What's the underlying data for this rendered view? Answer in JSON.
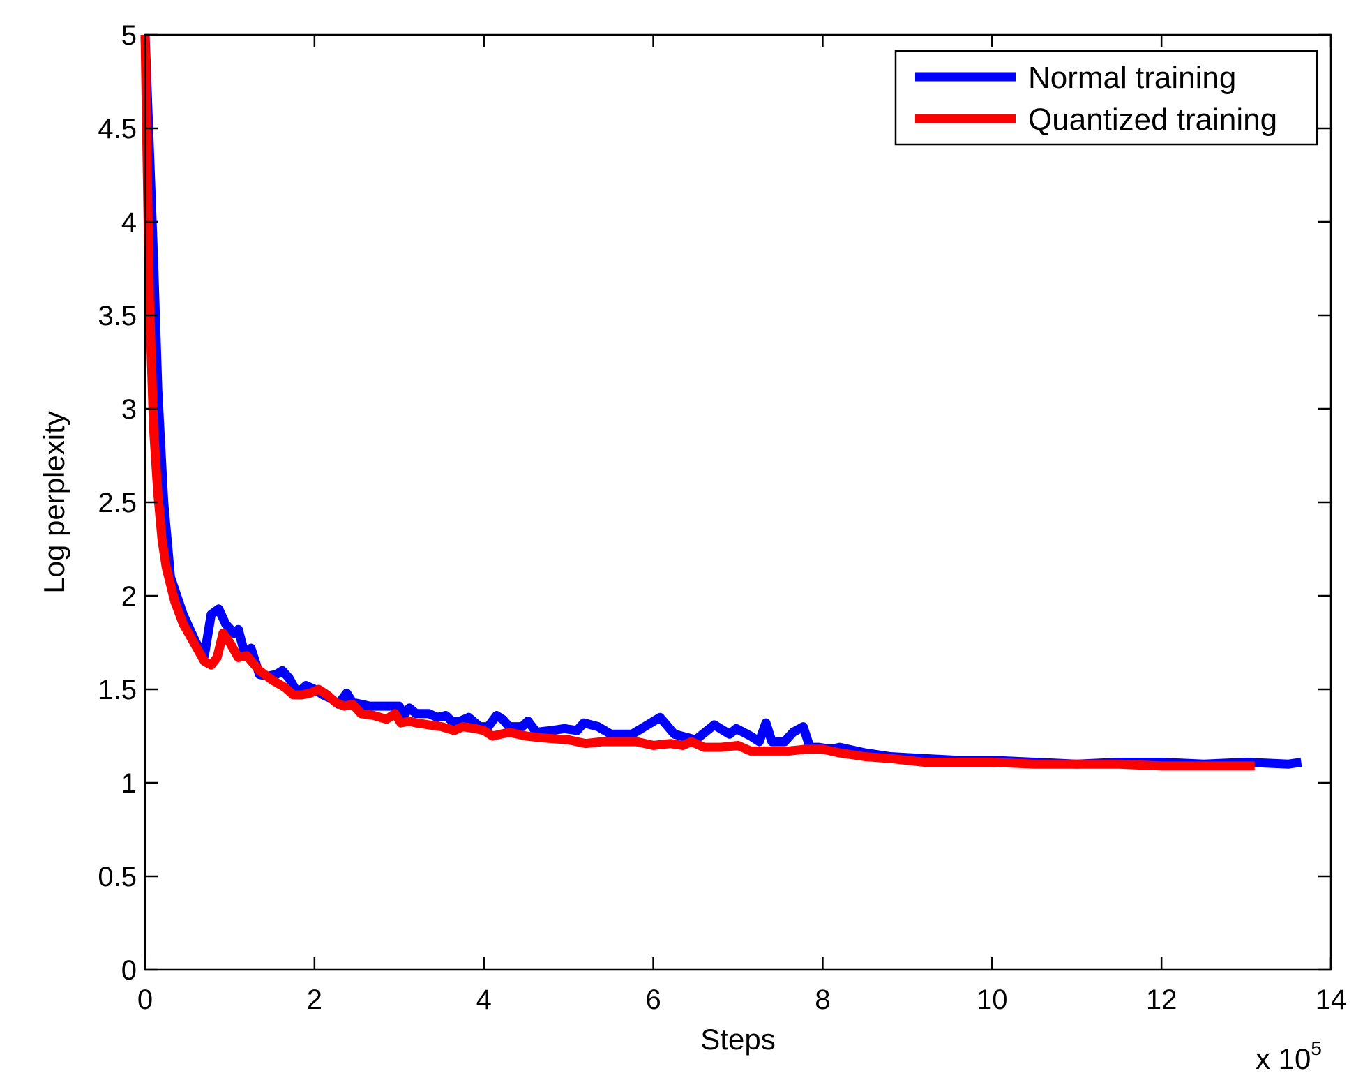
{
  "chart_data": {
    "type": "line",
    "xlabel": "Steps",
    "ylabel": "Log perplexity",
    "x_multiplier_label": "x 10",
    "x_multiplier_exponent": "5",
    "xlim": [
      0,
      14
    ],
    "ylim": [
      0,
      5
    ],
    "xticks": [
      0,
      2,
      4,
      6,
      8,
      10,
      12,
      14
    ],
    "yticks": [
      0,
      0.5,
      1,
      1.5,
      2,
      2.5,
      3,
      3.5,
      4,
      4.5,
      5
    ],
    "ytick_labels": [
      "0",
      "0.5",
      "1",
      "1.5",
      "2",
      "2.5",
      "3",
      "3.5",
      "4",
      "4.5",
      "5"
    ],
    "grid": false,
    "legend_position": "top-right",
    "series": [
      {
        "name": "Normal training",
        "color": "#0000ff",
        "points": [
          [
            0.0,
            5.0
          ],
          [
            0.1,
            3.8
          ],
          [
            0.15,
            3.1
          ],
          [
            0.22,
            2.5
          ],
          [
            0.3,
            2.1
          ],
          [
            0.45,
            1.9
          ],
          [
            0.6,
            1.75
          ],
          [
            0.7,
            1.68
          ],
          [
            0.78,
            1.9
          ],
          [
            0.87,
            1.93
          ],
          [
            0.95,
            1.85
          ],
          [
            1.05,
            1.8
          ],
          [
            1.1,
            1.82
          ],
          [
            1.17,
            1.7
          ],
          [
            1.25,
            1.72
          ],
          [
            1.35,
            1.58
          ],
          [
            1.45,
            1.57
          ],
          [
            1.55,
            1.58
          ],
          [
            1.62,
            1.6
          ],
          [
            1.7,
            1.56
          ],
          [
            1.8,
            1.48
          ],
          [
            1.9,
            1.52
          ],
          [
            2.0,
            1.5
          ],
          [
            2.1,
            1.47
          ],
          [
            2.2,
            1.45
          ],
          [
            2.28,
            1.42
          ],
          [
            2.38,
            1.48
          ],
          [
            2.45,
            1.43
          ],
          [
            2.55,
            1.42
          ],
          [
            2.65,
            1.41
          ],
          [
            2.8,
            1.41
          ],
          [
            3.0,
            1.41
          ],
          [
            3.05,
            1.36
          ],
          [
            3.12,
            1.4
          ],
          [
            3.2,
            1.37
          ],
          [
            3.35,
            1.37
          ],
          [
            3.45,
            1.35
          ],
          [
            3.55,
            1.36
          ],
          [
            3.62,
            1.33
          ],
          [
            3.72,
            1.33
          ],
          [
            3.82,
            1.35
          ],
          [
            3.95,
            1.3
          ],
          [
            4.05,
            1.3
          ],
          [
            4.15,
            1.36
          ],
          [
            4.22,
            1.34
          ],
          [
            4.3,
            1.3
          ],
          [
            4.45,
            1.3
          ],
          [
            4.52,
            1.33
          ],
          [
            4.62,
            1.27
          ],
          [
            4.8,
            1.28
          ],
          [
            4.95,
            1.29
          ],
          [
            5.1,
            1.28
          ],
          [
            5.18,
            1.32
          ],
          [
            5.35,
            1.3
          ],
          [
            5.5,
            1.26
          ],
          [
            5.75,
            1.26
          ],
          [
            6.08,
            1.35
          ],
          [
            6.25,
            1.26
          ],
          [
            6.5,
            1.23
          ],
          [
            6.72,
            1.31
          ],
          [
            6.9,
            1.26
          ],
          [
            6.98,
            1.29
          ],
          [
            7.15,
            1.25
          ],
          [
            7.25,
            1.22
          ],
          [
            7.33,
            1.32
          ],
          [
            7.4,
            1.22
          ],
          [
            7.55,
            1.22
          ],
          [
            7.65,
            1.27
          ],
          [
            7.77,
            1.3
          ],
          [
            7.85,
            1.19
          ],
          [
            7.95,
            1.19
          ],
          [
            8.1,
            1.18
          ],
          [
            8.2,
            1.19
          ],
          [
            8.5,
            1.16
          ],
          [
            8.8,
            1.14
          ],
          [
            9.2,
            1.13
          ],
          [
            9.6,
            1.12
          ],
          [
            10.0,
            1.12
          ],
          [
            10.5,
            1.11
          ],
          [
            11.0,
            1.1
          ],
          [
            11.5,
            1.11
          ],
          [
            12.0,
            1.11
          ],
          [
            12.5,
            1.1
          ],
          [
            13.0,
            1.11
          ],
          [
            13.5,
            1.1
          ],
          [
            13.65,
            1.11
          ]
        ]
      },
      {
        "name": "Quantized training",
        "color": "#ff0000",
        "points": [
          [
            0.0,
            5.0
          ],
          [
            0.05,
            3.6
          ],
          [
            0.1,
            2.9
          ],
          [
            0.15,
            2.55
          ],
          [
            0.2,
            2.3
          ],
          [
            0.25,
            2.15
          ],
          [
            0.35,
            1.97
          ],
          [
            0.45,
            1.85
          ],
          [
            0.6,
            1.73
          ],
          [
            0.7,
            1.65
          ],
          [
            0.78,
            1.63
          ],
          [
            0.85,
            1.67
          ],
          [
            0.92,
            1.8
          ],
          [
            1.0,
            1.75
          ],
          [
            1.1,
            1.67
          ],
          [
            1.2,
            1.68
          ],
          [
            1.35,
            1.6
          ],
          [
            1.5,
            1.55
          ],
          [
            1.65,
            1.51
          ],
          [
            1.75,
            1.47
          ],
          [
            1.85,
            1.47
          ],
          [
            1.95,
            1.48
          ],
          [
            2.05,
            1.5
          ],
          [
            2.15,
            1.47
          ],
          [
            2.25,
            1.43
          ],
          [
            2.35,
            1.41
          ],
          [
            2.45,
            1.42
          ],
          [
            2.55,
            1.37
          ],
          [
            2.7,
            1.36
          ],
          [
            2.85,
            1.34
          ],
          [
            2.95,
            1.37
          ],
          [
            3.02,
            1.32
          ],
          [
            3.12,
            1.33
          ],
          [
            3.2,
            1.32
          ],
          [
            3.35,
            1.31
          ],
          [
            3.5,
            1.3
          ],
          [
            3.65,
            1.28
          ],
          [
            3.75,
            1.3
          ],
          [
            3.9,
            1.29
          ],
          [
            4.0,
            1.28
          ],
          [
            4.1,
            1.25
          ],
          [
            4.2,
            1.26
          ],
          [
            4.3,
            1.27
          ],
          [
            4.5,
            1.25
          ],
          [
            4.7,
            1.24
          ],
          [
            5.0,
            1.23
          ],
          [
            5.2,
            1.21
          ],
          [
            5.4,
            1.22
          ],
          [
            5.8,
            1.22
          ],
          [
            6.0,
            1.2
          ],
          [
            6.2,
            1.21
          ],
          [
            6.35,
            1.2
          ],
          [
            6.45,
            1.22
          ],
          [
            6.6,
            1.19
          ],
          [
            6.8,
            1.19
          ],
          [
            7.0,
            1.2
          ],
          [
            7.15,
            1.17
          ],
          [
            7.35,
            1.17
          ],
          [
            7.6,
            1.17
          ],
          [
            7.8,
            1.18
          ],
          [
            8.0,
            1.18
          ],
          [
            8.2,
            1.16
          ],
          [
            8.5,
            1.14
          ],
          [
            8.8,
            1.13
          ],
          [
            9.2,
            1.11
          ],
          [
            9.6,
            1.11
          ],
          [
            10.0,
            1.11
          ],
          [
            10.5,
            1.1
          ],
          [
            11.0,
            1.1
          ],
          [
            11.5,
            1.1
          ],
          [
            12.0,
            1.09
          ],
          [
            12.5,
            1.09
          ],
          [
            13.0,
            1.09
          ],
          [
            13.1,
            1.09
          ]
        ]
      }
    ]
  }
}
